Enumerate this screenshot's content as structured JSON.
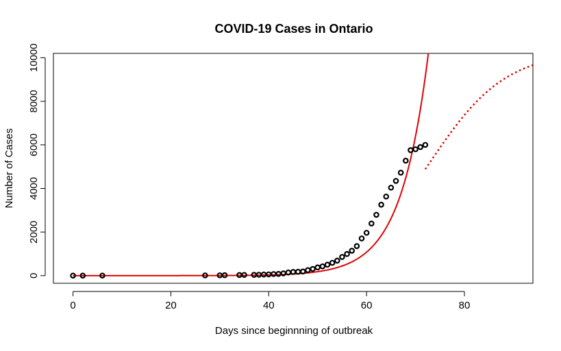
{
  "chart_data": {
    "type": "scatter",
    "title": "COVID-19 Cases in Ontario",
    "xlabel": "Days since beginnning of outbreak",
    "ylabel": "Number of Cases",
    "xlim": [
      -4,
      94
    ],
    "ylim": [
      -350,
      10200
    ],
    "xticks": [
      0,
      20,
      40,
      60,
      80
    ],
    "yticks": [
      0,
      2000,
      4000,
      6000,
      8000,
      10000
    ],
    "grid": false,
    "legend": "none",
    "colors": {
      "points": "#000000",
      "fit_exponential": "#e00000",
      "fit_logistic": "#e00000",
      "axis": "#000000"
    },
    "series": [
      {
        "kind": "points",
        "x": [
          0,
          2,
          6,
          27,
          30,
          31,
          34,
          35,
          37,
          38,
          39,
          40,
          41,
          42,
          43,
          44,
          45,
          46,
          47,
          48,
          49,
          50,
          51,
          52,
          53,
          54,
          55,
          56,
          57,
          58,
          59,
          60,
          61,
          62,
          63,
          64,
          65,
          66,
          67,
          68,
          69,
          70,
          71,
          72
        ],
        "y": [
          1,
          2,
          3,
          11,
          15,
          20,
          28,
          34,
          37,
          42,
          51,
          58,
          74,
          79,
          104,
          145,
          170,
          177,
          189,
          252,
          308,
          377,
          425,
          503,
          588,
          688,
          858,
          993,
          1144,
          1355,
          1706,
          1966,
          2392,
          2793,
          3255,
          3630,
          4038,
          4347,
          4726,
          5276,
          5759,
          5800,
          5900,
          6000
        ]
      },
      {
        "kind": "exponential-fit",
        "style": "solid",
        "a": 0.0248,
        "b": 0.178
      },
      {
        "kind": "logistic-fit",
        "style": "dotted",
        "K": 10300,
        "r": 0.128,
        "x0": 72.8
      }
    ]
  }
}
